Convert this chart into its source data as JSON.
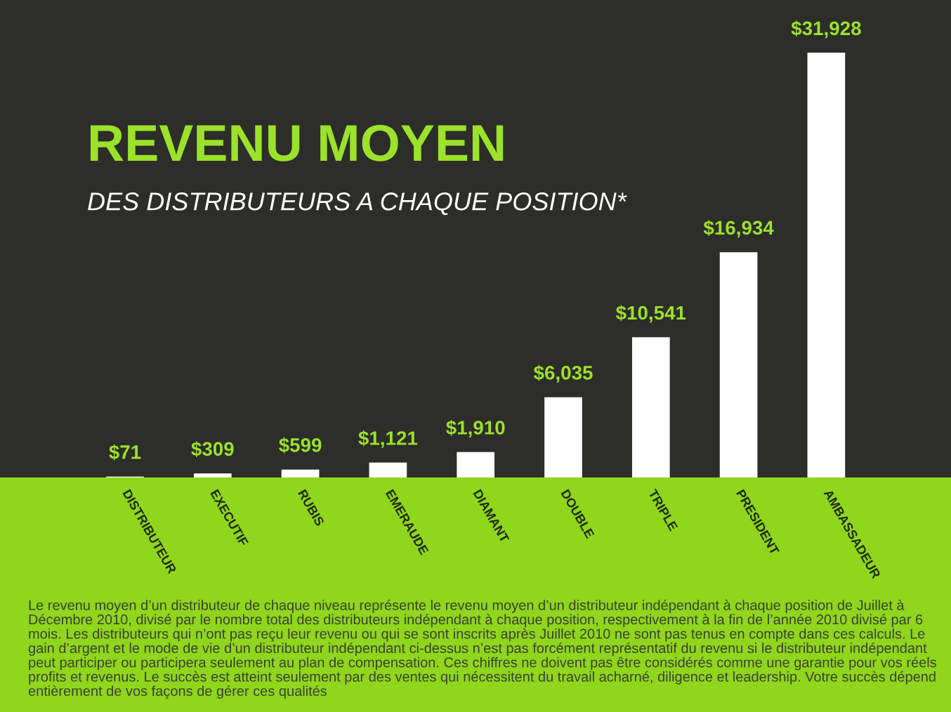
{
  "chart_data": {
    "type": "bar",
    "title": "REVENU MOYEN",
    "subtitle": "DES DISTRIBUTEURS A CHAQUE POSITION*",
    "categories": [
      "DISTRIBUTEUR",
      "EXECUTIF",
      "RUBIS",
      "EMERAUDE",
      "DIAMANT",
      "DOUBLE",
      "TRIPLE",
      "PRESIDENT",
      "AMBASSADEUR"
    ],
    "values": [
      71,
      309,
      599,
      1121,
      1910,
      6035,
      10541,
      16934,
      31928
    ],
    "value_labels": [
      "$71",
      "$309",
      "$599",
      "$1,121",
      "$1,910",
      "$6,035",
      "$10,541",
      "$16,934",
      "$31,928"
    ],
    "color": "#ffffff",
    "annotations": [
      "Le revenu moyen d’un distributeur de chaque niveau représente le revenu moyen d’un distributeur indépendant à chaque position de Juillet à Décembre 2010, divisé par le nombre total des distributeurs indépendant à chaque position, respectivement à la fin de l’année 2010 divisé par 6 mois. Les distributeurs qui n’ont pas reçu leur revenu ou qui se sont inscrits après Juillet 2010 ne sont pas tenus en compte dans ces calculs. Le gain d’argent et le mode de vie d’un distributeur indépendant ci-dessus n’est pas forcément représentatif du revenu si le distributeur indépendant peut participer ou participera seulement au plan de compensation. Ces chiffres ne doivent pas être considérés comme une garantie pour vos réels profits et revenus. Le succès est atteint seulement par des ventes qui nécessitent du travail acharné, diligence et leadership. Votre succès dépend entièrement de vos façons de gérer ces qualités"
    ]
  }
}
